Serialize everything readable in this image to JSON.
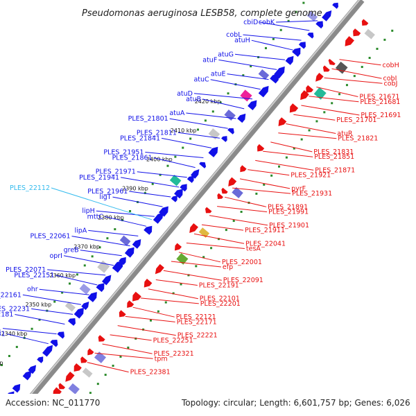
{
  "title": "Pseudomonas aeruginosa LESB58, complete genome",
  "footer": {
    "accession": "Accession: NC_011770",
    "topology": "Topology: circular; Length: 6,601,757 bp; Genes: 6,026"
  },
  "colors": {
    "forward": "#1010e8",
    "reverse": "#e81010",
    "highlight": "#33bbee",
    "backbone": "#8a8a8a",
    "gc_dots": "#2a8a2a"
  },
  "ticks": [
    "2330 kbp",
    "2340 kbp",
    "2350 kbp",
    "2360 kbp",
    "2370 kbp",
    "2380 kbp",
    "2390 kbp",
    "2400 kbp",
    "2410 kbp",
    "2420 kbp"
  ],
  "labels_forward": [
    "cobK",
    "cbiD",
    "cobL",
    "atuH",
    "atuG",
    "atuF",
    "atuE",
    "atuC",
    "atuD",
    "atuB",
    "atuA",
    "PLES_21801",
    "PLES_21811",
    "PLES_21841",
    "PLES_21951",
    "PLES_21861",
    "PLES_21971",
    "PLES_21941",
    "PLES_21961",
    "ligT",
    "lipH",
    "mttC",
    "lipA",
    "PLES_22061",
    "greB",
    "oprI",
    "PLES_22071",
    "PLES_22151",
    "ohr",
    "PLES_22161",
    "PLES_22231",
    "PLES_22181",
    "PLES_22241",
    "PLES_22281"
  ],
  "labels_highlight": [
    "PLES_22112"
  ],
  "labels_reverse": [
    "cobH",
    "cobI",
    "cobJ",
    "PLES_21671",
    "PLES_21681",
    "PLES_21691",
    "PLES_21701",
    "atuR",
    "PLES_21821",
    "PLES_21831",
    "PLES_21851",
    "PLES_21871",
    "PLES_21921",
    "pyrF",
    "PLES_21931",
    "PLES_21891",
    "PLES_21991",
    "PLES_21901",
    "PLES_21911",
    "PLES_22041",
    "tesA",
    "PLES_22001",
    "efp",
    "PLES_22091",
    "PLES_22191",
    "PLES_22101",
    "PLES_22201",
    "PLES_22121",
    "PLES_22171",
    "PLES_22221",
    "PLES_22251",
    "PLES_22321",
    "tpm",
    "PLES_22381"
  ]
}
